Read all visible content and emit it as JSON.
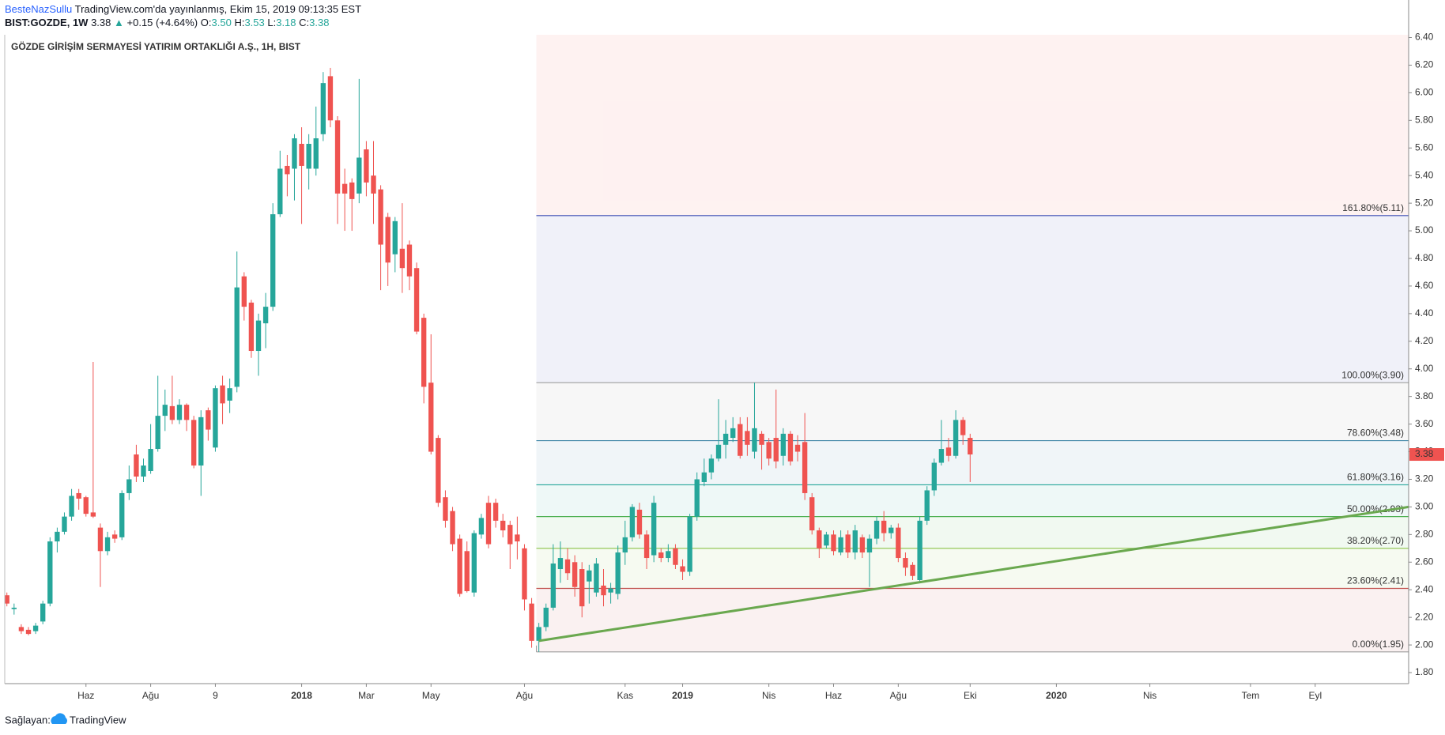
{
  "header": {
    "author": "BesteNazSullu",
    "published": "TradingView.com'da yayınlanmış, Ekim 15, 2019 09:13:35 EST",
    "symbol": "BIST:GOZDE, 1W",
    "price": "3.38",
    "arrow": "▲",
    "change": "+0.15 (+4.64%)",
    "o_label": "O:",
    "o": "3.50",
    "h_label": "H:",
    "h": "3.53",
    "l_label": "L:",
    "l": "3.18",
    "c_label": "C:",
    "c": "3.38"
  },
  "footer": {
    "provider": "Sağlayan:",
    "brand": "TradingView"
  },
  "chart_data": {
    "type": "candlestick",
    "title": "GÖZDE GİRİŞİM SERMAYESİ YATIRIM ORTAKLIĞI A.Ş., 1H, BIST",
    "up_color": "#26a69a",
    "down_color": "#ef5350",
    "open": [
      2.36,
      2.26,
      2.13,
      2.11,
      2.1,
      2.17,
      2.3,
      2.75,
      2.82,
      2.93,
      3.1,
      3.07,
      2.96,
      2.85,
      2.68,
      2.8,
      2.78,
      3.1,
      3.38,
      3.22,
      3.26,
      3.42,
      3.66,
      3.73,
      3.63,
      3.74,
      3.63,
      3.3,
      3.7,
      3.43,
      3.88,
      3.77,
      3.87,
      4.67,
      4.48,
      4.13,
      4.33,
      4.45,
      5.12,
      5.47,
      5.45,
      5.63,
      5.45,
      5.45,
      5.7,
      6.12,
      5.8,
      5.34,
      5.35,
      5.27,
      5.59,
      5.4,
      5.3,
      5.1,
      4.83,
      4.87,
      4.9,
      4.73,
      4.37,
      3.9,
      3.5,
      3.07,
      2.97,
      2.77,
      2.68,
      2.38,
      2.8,
      3.03,
      3.03,
      2.9,
      2.87,
      2.8,
      2.7,
      2.3,
      2.03,
      2.13,
      2.27,
      2.55,
      2.62,
      2.6,
      2.55,
      2.46,
      2.38,
      2.43,
      2.38,
      2.37,
      2.67,
      2.78,
      2.98,
      2.8,
      2.65,
      2.67,
      2.63,
      2.7,
      2.57,
      2.53,
      2.93,
      3.18,
      3.25,
      3.35,
      3.45,
      3.5,
      3.6,
      3.55,
      3.4,
      3.53,
      3.47,
      3.5,
      3.37,
      3.53,
      3.45,
      3.47,
      3.07,
      2.83,
      2.72,
      2.8,
      2.67,
      2.8,
      2.67,
      2.78,
      2.67,
      2.77,
      2.9,
      2.81,
      2.85,
      2.63,
      2.58,
      2.47,
      2.9,
      3.12,
      3.32,
      3.43,
      3.37,
      3.63,
      3.5
    ],
    "high": [
      2.38,
      2.3,
      2.15,
      2.13,
      2.16,
      2.32,
      2.78,
      2.85,
      2.96,
      3.13,
      3.13,
      3.08,
      4.05,
      2.88,
      2.82,
      2.83,
      3.12,
      3.3,
      3.45,
      3.35,
      3.6,
      3.95,
      3.85,
      3.95,
      3.78,
      3.75,
      3.66,
      3.7,
      3.72,
      3.88,
      3.95,
      3.93,
      4.85,
      4.7,
      4.5,
      4.4,
      4.55,
      5.2,
      5.58,
      5.55,
      5.7,
      5.75,
      5.7,
      5.9,
      6.15,
      6.18,
      5.83,
      5.45,
      5.38,
      6.1,
      5.65,
      5.65,
      5.33,
      5.13,
      5.1,
      5.2,
      4.93,
      4.77,
      4.4,
      4.25,
      3.52,
      3.12,
      3.0,
      2.8,
      2.75,
      2.83,
      2.95,
      3.08,
      3.06,
      2.95,
      2.9,
      2.93,
      2.73,
      2.34,
      2.16,
      2.3,
      2.73,
      2.75,
      2.7,
      2.65,
      2.6,
      2.58,
      2.63,
      2.55,
      2.45,
      2.72,
      2.9,
      3.02,
      3.03,
      2.83,
      3.08,
      2.7,
      2.73,
      2.73,
      2.62,
      2.95,
      3.25,
      3.35,
      3.38,
      3.78,
      3.63,
      3.65,
      3.65,
      3.65,
      3.9,
      3.55,
      3.5,
      3.85,
      3.57,
      3.55,
      3.52,
      3.68,
      3.1,
      2.85,
      2.82,
      2.83,
      2.83,
      2.83,
      2.87,
      2.8,
      2.8,
      2.93,
      2.97,
      2.87,
      2.88,
      2.67,
      2.6,
      2.93,
      3.15,
      3.35,
      3.63,
      3.5,
      3.7,
      3.65,
      3.53
    ],
    "low": [
      2.28,
      2.22,
      2.08,
      2.07,
      2.08,
      2.15,
      2.28,
      2.67,
      2.8,
      2.9,
      2.98,
      2.93,
      2.92,
      2.42,
      2.65,
      2.74,
      2.76,
      3.05,
      3.18,
      3.18,
      3.24,
      3.4,
      3.55,
      3.6,
      3.6,
      3.55,
      3.28,
      3.08,
      3.48,
      3.4,
      3.6,
      3.68,
      3.83,
      4.35,
      4.08,
      3.95,
      4.15,
      4.42,
      5.1,
      5.25,
      5.22,
      5.05,
      5.3,
      5.4,
      5.65,
      5.75,
      5.05,
      5.0,
      5.0,
      5.2,
      5.25,
      5.05,
      4.57,
      4.6,
      4.7,
      4.55,
      4.57,
      4.25,
      3.75,
      3.38,
      3.0,
      2.85,
      2.68,
      2.35,
      2.38,
      2.35,
      2.77,
      2.7,
      2.85,
      2.78,
      2.55,
      2.62,
      2.25,
      1.98,
      1.95,
      2.1,
      2.25,
      2.45,
      2.47,
      2.35,
      2.2,
      2.3,
      2.35,
      2.28,
      2.3,
      2.33,
      2.58,
      2.75,
      2.77,
      2.55,
      2.6,
      2.6,
      2.6,
      2.55,
      2.47,
      2.5,
      2.9,
      3.15,
      3.2,
      3.33,
      3.35,
      3.47,
      3.35,
      3.37,
      3.35,
      3.27,
      3.3,
      3.28,
      3.3,
      3.3,
      3.33,
      3.05,
      2.8,
      2.63,
      2.7,
      2.65,
      2.65,
      2.63,
      2.62,
      2.63,
      2.42,
      2.73,
      2.75,
      2.77,
      2.6,
      2.5,
      2.47,
      2.45,
      2.87,
      3.08,
      3.3,
      3.33,
      3.35,
      3.45,
      3.18
    ],
    "close": [
      2.3,
      2.27,
      2.1,
      2.08,
      2.14,
      2.3,
      2.75,
      2.82,
      2.93,
      3.08,
      3.06,
      2.95,
      2.93,
      2.68,
      2.78,
      2.77,
      3.1,
      3.2,
      3.22,
      3.3,
      3.42,
      3.66,
      3.74,
      3.63,
      3.74,
      3.63,
      3.3,
      3.65,
      3.56,
      3.86,
      3.75,
      3.86,
      4.59,
      4.45,
      4.13,
      4.35,
      4.45,
      5.12,
      5.45,
      5.41,
      5.67,
      5.47,
      5.63,
      5.67,
      6.07,
      5.8,
      5.27,
      5.27,
      5.23,
      5.53,
      5.35,
      5.27,
      4.9,
      4.77,
      5.07,
      4.73,
      4.67,
      4.27,
      3.87,
      3.4,
      3.03,
      2.9,
      2.73,
      2.37,
      2.39,
      2.81,
      2.92,
      2.73,
      2.9,
      2.83,
      2.73,
      2.75,
      2.33,
      2.03,
      2.13,
      2.27,
      2.59,
      2.63,
      2.52,
      2.42,
      2.28,
      2.54,
      2.59,
      2.36,
      2.41,
      2.67,
      2.78,
      3.0,
      2.8,
      2.63,
      3.03,
      2.63,
      2.68,
      2.58,
      2.53,
      2.93,
      3.2,
      3.25,
      3.35,
      3.45,
      3.53,
      3.57,
      3.37,
      3.45,
      3.57,
      3.45,
      3.35,
      3.33,
      3.53,
      3.33,
      3.4,
      3.1,
      2.83,
      2.7,
      2.8,
      2.68,
      2.78,
      2.67,
      2.83,
      2.67,
      2.77,
      2.9,
      2.81,
      2.85,
      2.63,
      2.56,
      2.5,
      2.9,
      3.12,
      3.32,
      3.42,
      3.37,
      3.63,
      3.52,
      3.38
    ],
    "xlim": [
      -0.3,
      195
    ],
    "xticks": [
      {
        "value": 11,
        "label": "Haz"
      },
      {
        "value": 20,
        "label": "Ağu"
      },
      {
        "value": 29,
        "label": "9"
      },
      {
        "value": 41,
        "label": "2018"
      },
      {
        "value": 50,
        "label": "Mar"
      },
      {
        "value": 59,
        "label": "May"
      },
      {
        "value": 72,
        "label": "Ağu"
      },
      {
        "value": 86,
        "label": "Kas"
      },
      {
        "value": 94,
        "label": "2019"
      },
      {
        "value": 106,
        "label": "Nis"
      },
      {
        "value": 115,
        "label": "Haz"
      },
      {
        "value": 124,
        "label": "Ağu"
      },
      {
        "value": 134,
        "label": "Eki"
      },
      {
        "value": 146,
        "label": "2020"
      },
      {
        "value": 159,
        "label": "Nis"
      },
      {
        "value": 173,
        "label": "Tem"
      },
      {
        "value": 182,
        "label": "Eyl"
      }
    ],
    "ylim": [
      1.72,
      6.42
    ],
    "yticks": [
      {
        "value": 1.8,
        "label": "1.80"
      },
      {
        "value": 2.0,
        "label": "2.00"
      },
      {
        "value": 2.2,
        "label": "2.20"
      },
      {
        "value": 2.4,
        "label": "2.40"
      },
      {
        "value": 2.6,
        "label": "2.60"
      },
      {
        "value": 2.8,
        "label": "2.80"
      },
      {
        "value": 3.0,
        "label": "3.00"
      },
      {
        "value": 3.2,
        "label": "3.20"
      },
      {
        "value": 3.4,
        "label": "3.40"
      },
      {
        "value": 3.6,
        "label": "3.60"
      },
      {
        "value": 3.8,
        "label": "3.80"
      },
      {
        "value": 4.0,
        "label": "4.00"
      },
      {
        "value": 4.2,
        "label": "4.20"
      },
      {
        "value": 4.4,
        "label": "4.40"
      },
      {
        "value": 4.6,
        "label": "4.60"
      },
      {
        "value": 4.8,
        "label": "4.80"
      },
      {
        "value": 5.0,
        "label": "5.00"
      },
      {
        "value": 5.2,
        "label": "5.20"
      },
      {
        "value": 5.4,
        "label": "5.40"
      },
      {
        "value": 5.6,
        "label": "5.60"
      },
      {
        "value": 5.8,
        "label": "5.80"
      },
      {
        "value": 6.0,
        "label": "6.00"
      },
      {
        "value": 6.2,
        "label": "6.20"
      },
      {
        "value": 6.4,
        "label": "6.40"
      }
    ],
    "fib_levels": [
      {
        "price": 1.95,
        "label": "0.00%(1.95)",
        "color": "#9e9e9e"
      },
      {
        "price": 2.41,
        "label": "23.60%(2.41)",
        "color": "#c0504d"
      },
      {
        "price": 2.7,
        "label": "38.20%(2.70)",
        "color": "#8bc34a"
      },
      {
        "price": 2.93,
        "label": "50.00%(2.93)",
        "color": "#4caf50"
      },
      {
        "price": 3.16,
        "label": "61.80%(3.16)",
        "color": "#26a69a"
      },
      {
        "price": 3.48,
        "label": "78.60%(3.48)",
        "color": "#3d85a6"
      },
      {
        "price": 3.9,
        "label": "100.00%(3.90)",
        "color": "#9e9e9e"
      },
      {
        "price": 5.11,
        "label": "161.80%(5.11)",
        "color": "#3f51b5"
      }
    ],
    "trendline": {
      "color": "#6aa84f",
      "x": [
        74,
        195
      ],
      "y": [
        2.03,
        3.0
      ]
    }
  }
}
